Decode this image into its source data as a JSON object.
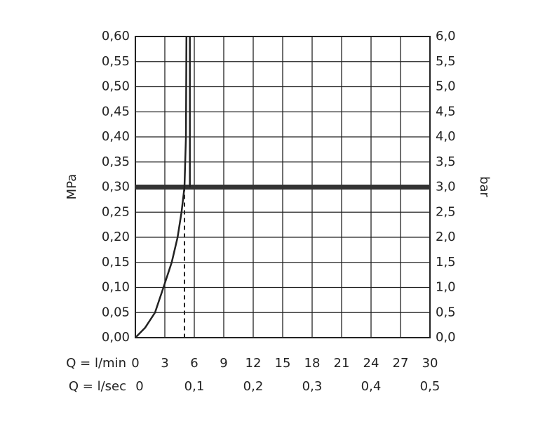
{
  "chart_data": {
    "type": "line",
    "ylabel": "MPa",
    "y2label": "bar",
    "xlabel": "Q = l/min",
    "x2label": "Q = l/sec",
    "xlim": [
      0,
      30
    ],
    "xticks": [
      0,
      3,
      6,
      9,
      12,
      15,
      18,
      21,
      24,
      27,
      30
    ],
    "x2lim": [
      0,
      0.5
    ],
    "x2ticks": [
      0,
      {
        "value": 0.1,
        "label": "0,1"
      },
      {
        "value": 0.2,
        "label": "0,2"
      },
      {
        "value": 0.3,
        "label": "0,3"
      },
      {
        "value": 0.4,
        "label": "0,4"
      },
      {
        "value": 0.5,
        "label": "0,5"
      }
    ],
    "ylim": [
      0,
      0.6
    ],
    "yticks": [
      {
        "value": 0,
        "label": "0,00"
      },
      {
        "value": 0.05,
        "label": "0,05"
      },
      {
        "value": 0.1,
        "label": "0,10"
      },
      {
        "value": 0.15,
        "label": "0,15"
      },
      {
        "value": 0.2,
        "label": "0,20"
      },
      {
        "value": 0.25,
        "label": "0,25"
      },
      {
        "value": 0.3,
        "label": "0,30"
      },
      {
        "value": 0.35,
        "label": "0,35"
      },
      {
        "value": 0.4,
        "label": "0,40"
      },
      {
        "value": 0.45,
        "label": "0,45"
      },
      {
        "value": 0.5,
        "label": "0,50"
      },
      {
        "value": 0.55,
        "label": "0,55"
      },
      {
        "value": 0.6,
        "label": "0,60"
      }
    ],
    "y2lim": [
      0,
      6
    ],
    "y2ticks": [
      {
        "value": 0,
        "label": "0,0"
      },
      {
        "value": 0.5,
        "label": "0,5"
      },
      {
        "value": 1,
        "label": "1,0"
      },
      {
        "value": 1.5,
        "label": "1,5"
      },
      {
        "value": 2,
        "label": "2,0"
      },
      {
        "value": 2.5,
        "label": "2,5"
      },
      {
        "value": 3,
        "label": "3,0"
      },
      {
        "value": 3.5,
        "label": "3,5"
      },
      {
        "value": 4,
        "label": "4,0"
      },
      {
        "value": 4.5,
        "label": "4,5"
      },
      {
        "value": 5,
        "label": "5,0"
      },
      {
        "value": 5.5,
        "label": "5,5"
      },
      {
        "value": 6,
        "label": "6,0"
      }
    ],
    "grid": true,
    "series": [
      {
        "color": "#222222",
        "x": [
          0,
          1,
          2,
          2.86,
          3.7,
          4.3,
          4.7,
          5.0,
          5.15,
          5.2
        ],
        "values": [
          0,
          0.02,
          0.05,
          0.1,
          0.15,
          0.2,
          0.25,
          0.3,
          0.4,
          0.6
        ]
      },
      {
        "color": "#222222",
        "x": [
          5.55,
          5.55
        ],
        "values": [
          0.3,
          0.6
        ]
      }
    ],
    "reference_line": {
      "y": 0.3,
      "color": "#333333"
    },
    "operating_point": {
      "x": 5.0,
      "y": 0.3
    }
  }
}
